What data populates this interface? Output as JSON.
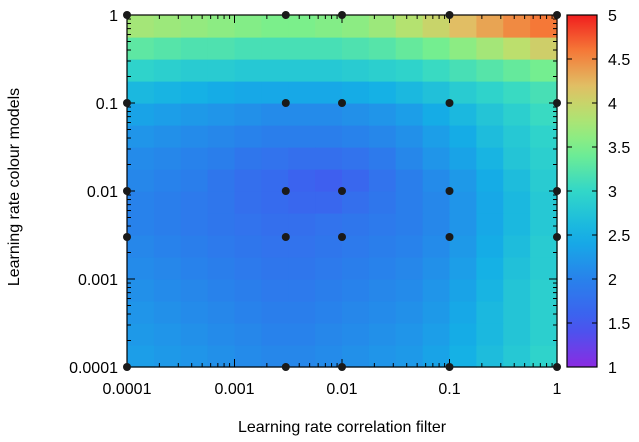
{
  "chart_data": {
    "type": "heatmap",
    "xlabel": "Learning rate correlation filter",
    "ylabel": "Learning rate colour models",
    "x_scale": "log",
    "y_scale": "log",
    "xlim": [
      0.0001,
      1
    ],
    "ylim": [
      0.0001,
      1
    ],
    "x_tick_labels": [
      "0.0001",
      "0.001",
      "0.01",
      "0.1",
      "1"
    ],
    "y_tick_labels": [
      "0.0001",
      "0.001",
      "0.01",
      "0.1",
      "1"
    ],
    "colorbar": {
      "min": 1,
      "max": 5,
      "tick_labels": [
        "1",
        "1.5",
        "2",
        "2.5",
        "3",
        "3.5",
        "4",
        "4.5",
        "5"
      ]
    },
    "grid": false,
    "grid_resolution": 16,
    "sample_points": {
      "x": [
        0.0001,
        0.003,
        0.01,
        0.1,
        1
      ],
      "y": [
        0.0001,
        0.003,
        0.01,
        0.1,
        1
      ]
    },
    "values": [
      [
        2.3,
        2.25,
        2.2,
        2.15,
        2.1,
        2.05,
        2.05,
        2.1,
        2.15,
        2.2,
        2.25,
        2.35,
        2.5,
        2.65,
        2.8,
        2.95
      ],
      [
        2.25,
        2.2,
        2.15,
        2.1,
        2.05,
        2.0,
        2.0,
        2.05,
        2.1,
        2.15,
        2.2,
        2.3,
        2.45,
        2.6,
        2.75,
        2.9
      ],
      [
        2.2,
        2.15,
        2.1,
        2.05,
        2.0,
        1.95,
        1.95,
        2.0,
        2.05,
        2.1,
        2.15,
        2.25,
        2.4,
        2.6,
        2.75,
        2.9
      ],
      [
        2.15,
        2.1,
        2.05,
        2.0,
        1.95,
        1.9,
        1.9,
        1.95,
        2.0,
        2.05,
        2.1,
        2.2,
        2.35,
        2.55,
        2.75,
        2.9
      ],
      [
        2.1,
        2.05,
        2.0,
        1.95,
        1.9,
        1.85,
        1.85,
        1.9,
        1.95,
        2.0,
        2.05,
        2.15,
        2.3,
        2.5,
        2.7,
        2.85
      ],
      [
        2.05,
        2.0,
        1.95,
        1.9,
        1.85,
        1.8,
        1.8,
        1.85,
        1.9,
        1.95,
        2.0,
        2.1,
        2.25,
        2.45,
        2.65,
        2.85
      ],
      [
        2.0,
        1.95,
        1.9,
        1.85,
        1.8,
        1.75,
        1.75,
        1.8,
        1.85,
        1.9,
        1.95,
        2.05,
        2.2,
        2.4,
        2.6,
        2.8
      ],
      [
        2.0,
        1.95,
        1.9,
        1.85,
        1.75,
        1.7,
        1.65,
        1.65,
        1.75,
        1.85,
        1.95,
        2.05,
        2.2,
        2.4,
        2.6,
        2.8
      ],
      [
        2.05,
        2.0,
        1.95,
        1.85,
        1.75,
        1.7,
        1.6,
        1.55,
        1.65,
        1.8,
        1.95,
        2.1,
        2.25,
        2.45,
        2.65,
        2.85
      ],
      [
        2.1,
        2.05,
        2.0,
        1.95,
        1.85,
        1.8,
        1.75,
        1.75,
        1.8,
        1.9,
        2.05,
        2.2,
        2.35,
        2.55,
        2.75,
        2.9
      ],
      [
        2.2,
        2.15,
        2.1,
        2.05,
        2.0,
        1.95,
        1.95,
        1.95,
        2.0,
        2.05,
        2.15,
        2.3,
        2.45,
        2.65,
        2.8,
        2.95
      ],
      [
        2.35,
        2.3,
        2.25,
        2.2,
        2.15,
        2.1,
        2.1,
        2.1,
        2.15,
        2.2,
        2.3,
        2.45,
        2.6,
        2.75,
        2.9,
        3.05
      ],
      [
        2.6,
        2.55,
        2.5,
        2.45,
        2.4,
        2.4,
        2.4,
        2.4,
        2.45,
        2.5,
        2.6,
        2.7,
        2.85,
        2.95,
        3.05,
        3.15
      ],
      [
        2.95,
        2.9,
        2.85,
        2.85,
        2.8,
        2.8,
        2.8,
        2.8,
        2.85,
        2.9,
        2.95,
        3.05,
        3.15,
        3.25,
        3.35,
        3.45
      ],
      [
        3.3,
        3.25,
        3.2,
        3.2,
        3.15,
        3.15,
        3.15,
        3.15,
        3.2,
        3.25,
        3.35,
        3.45,
        3.6,
        3.75,
        3.9,
        4.05
      ],
      [
        3.75,
        3.7,
        3.65,
        3.6,
        3.55,
        3.5,
        3.5,
        3.55,
        3.6,
        3.7,
        3.85,
        4.0,
        4.2,
        4.35,
        4.5,
        4.6
      ]
    ]
  }
}
